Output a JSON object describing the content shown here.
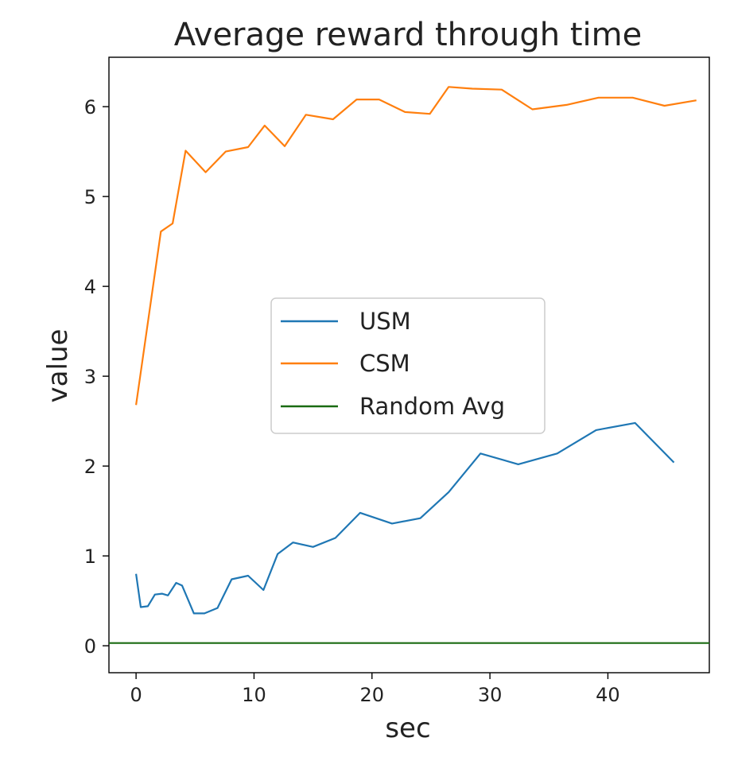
{
  "chart_data": {
    "type": "line",
    "title": "Average reward through time",
    "xlabel": "sec",
    "ylabel": "value",
    "xlim": [
      -2.3,
      48.6
    ],
    "ylim": [
      -0.3,
      6.55
    ],
    "xticks": [
      0,
      10,
      20,
      30,
      40
    ],
    "yticks": [
      0,
      1,
      2,
      3,
      4,
      5,
      6
    ],
    "grid": false,
    "legend_position": "center",
    "series": [
      {
        "name": "USM",
        "color": "#1f77b4",
        "x": [
          0,
          0.4,
          1,
          1.6,
          2.2,
          2.7,
          3.4,
          3.9,
          4.9,
          5.8,
          6.9,
          8.1,
          9.5,
          10.8,
          12,
          13.3,
          15,
          16.9,
          19,
          21.7,
          24.1,
          26.5,
          29.2,
          32.4,
          35.7,
          39,
          42.3,
          45.6
        ],
        "y": [
          0.8,
          0.43,
          0.44,
          0.57,
          0.58,
          0.56,
          0.7,
          0.67,
          0.36,
          0.36,
          0.42,
          0.74,
          0.78,
          0.62,
          1.02,
          1.15,
          1.1,
          1.2,
          1.48,
          1.36,
          1.42,
          1.71,
          2.14,
          2.02,
          2.14,
          2.4,
          2.48,
          2.04
        ]
      },
      {
        "name": "CSM",
        "color": "#ff7f0e",
        "x": [
          0,
          0.35,
          2.1,
          3.1,
          4.2,
          5.9,
          7.6,
          9.5,
          10.9,
          12.6,
          14.4,
          16.7,
          18.7,
          20.6,
          22.8,
          24.9,
          26.5,
          28.5,
          31,
          33.6,
          36.5,
          39.2,
          42.1,
          44.8,
          47.5
        ],
        "y": [
          2.68,
          3.0,
          4.61,
          4.7,
          5.51,
          5.27,
          5.5,
          5.55,
          5.79,
          5.56,
          5.91,
          5.86,
          6.08,
          6.08,
          5.94,
          5.92,
          6.22,
          6.2,
          6.19,
          5.97,
          6.02,
          6.1,
          6.1,
          6.01,
          6.07
        ]
      },
      {
        "name": "Random Avg",
        "color": "#1a6b12",
        "x": [
          -2.3,
          48.6
        ],
        "y": [
          0.03,
          0.03
        ]
      }
    ]
  }
}
